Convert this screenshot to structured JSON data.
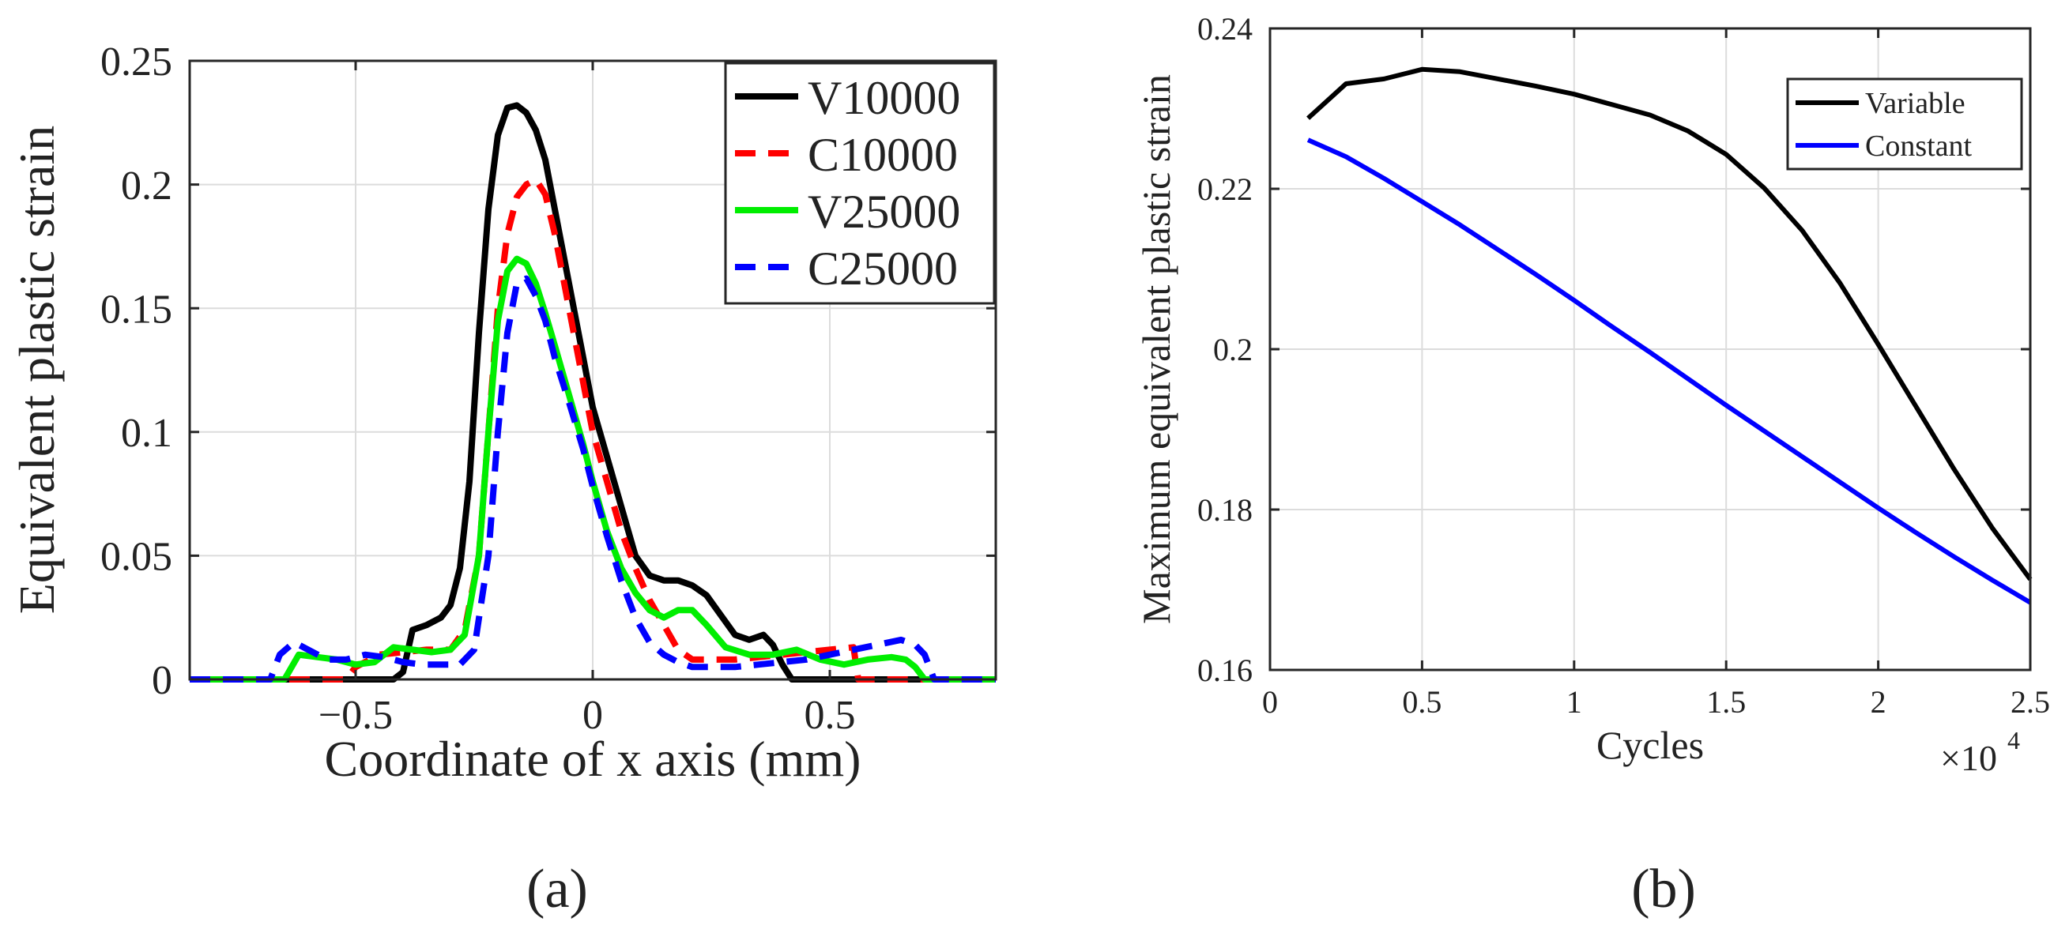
{
  "figure": {
    "panel_a_label": "(a)",
    "panel_b_label": "(b)"
  },
  "chart_data": [
    {
      "type": "line",
      "panel": "a",
      "xlabel": "Coordinate of x axis (mm)",
      "ylabel": "Equivalent plastic strain",
      "xlim": [
        -0.85,
        0.85
      ],
      "ylim": [
        0,
        0.25
      ],
      "xticks": [
        -0.5,
        0,
        0.5
      ],
      "xtick_labels": [
        "−0.5",
        "0",
        "0.5"
      ],
      "yticks": [
        0,
        0.05,
        0.1,
        0.15,
        0.2,
        0.25
      ],
      "ytick_labels": [
        "0",
        "0.05",
        "0.1",
        "0.15",
        "0.2",
        "0.25"
      ],
      "grid": true,
      "legend_position": "top-right",
      "series": [
        {
          "name": "V10000",
          "color": "#000000",
          "dash": "solid",
          "x": [
            -0.85,
            -0.42,
            -0.4,
            -0.38,
            -0.35,
            -0.32,
            -0.3,
            -0.28,
            -0.26,
            -0.24,
            -0.22,
            -0.2,
            -0.18,
            -0.16,
            -0.14,
            -0.12,
            -0.1,
            -0.08,
            -0.05,
            -0.02,
            0.0,
            0.03,
            0.06,
            0.09,
            0.12,
            0.15,
            0.18,
            0.21,
            0.24,
            0.27,
            0.3,
            0.33,
            0.36,
            0.38,
            0.4,
            0.42,
            0.44,
            0.85
          ],
          "y": [
            0,
            0,
            0.003,
            0.02,
            0.022,
            0.025,
            0.03,
            0.045,
            0.08,
            0.14,
            0.19,
            0.22,
            0.231,
            0.232,
            0.229,
            0.222,
            0.21,
            0.19,
            0.16,
            0.13,
            0.11,
            0.09,
            0.07,
            0.05,
            0.042,
            0.04,
            0.04,
            0.038,
            0.034,
            0.026,
            0.018,
            0.016,
            0.018,
            0.014,
            0.006,
            0,
            0,
            0
          ]
        },
        {
          "name": "C10000",
          "color": "#ff0000",
          "dash": "dashed",
          "x": [
            -0.85,
            -0.52,
            -0.5,
            -0.45,
            -0.4,
            -0.35,
            -0.3,
            -0.27,
            -0.24,
            -0.22,
            -0.2,
            -0.18,
            -0.16,
            -0.14,
            -0.12,
            -0.1,
            -0.08,
            -0.05,
            -0.02,
            0.0,
            0.03,
            0.06,
            0.09,
            0.12,
            0.15,
            0.18,
            0.21,
            0.25,
            0.3,
            0.35,
            0.4,
            0.45,
            0.5,
            0.55,
            0.56,
            0.85
          ],
          "y": [
            0,
            0,
            0.005,
            0.01,
            0.011,
            0.012,
            0.012,
            0.02,
            0.05,
            0.1,
            0.15,
            0.18,
            0.195,
            0.2,
            0.202,
            0.196,
            0.18,
            0.15,
            0.12,
            0.1,
            0.08,
            0.06,
            0.045,
            0.032,
            0.022,
            0.012,
            0.008,
            0.008,
            0.008,
            0.009,
            0.01,
            0.011,
            0.012,
            0.013,
            0,
            0
          ]
        },
        {
          "name": "V25000",
          "color": "#00ee00",
          "dash": "solid",
          "x": [
            -0.85,
            -0.65,
            -0.62,
            -0.58,
            -0.54,
            -0.5,
            -0.46,
            -0.42,
            -0.38,
            -0.34,
            -0.3,
            -0.27,
            -0.24,
            -0.22,
            -0.2,
            -0.18,
            -0.16,
            -0.14,
            -0.12,
            -0.1,
            -0.08,
            -0.05,
            -0.02,
            0.0,
            0.03,
            0.06,
            0.09,
            0.12,
            0.15,
            0.18,
            0.21,
            0.24,
            0.28,
            0.33,
            0.38,
            0.43,
            0.48,
            0.53,
            0.58,
            0.63,
            0.66,
            0.68,
            0.7,
            0.85
          ],
          "y": [
            0,
            0,
            0.01,
            0.009,
            0.008,
            0.006,
            0.007,
            0.013,
            0.012,
            0.011,
            0.012,
            0.018,
            0.05,
            0.1,
            0.145,
            0.165,
            0.17,
            0.168,
            0.16,
            0.148,
            0.135,
            0.115,
            0.095,
            0.08,
            0.06,
            0.045,
            0.035,
            0.028,
            0.025,
            0.028,
            0.028,
            0.022,
            0.013,
            0.01,
            0.01,
            0.012,
            0.008,
            0.006,
            0.008,
            0.009,
            0.008,
            0.005,
            0,
            0
          ]
        },
        {
          "name": "C25000",
          "color": "#0000ff",
          "dash": "dashed",
          "x": [
            -0.85,
            -0.68,
            -0.66,
            -0.63,
            -0.6,
            -0.56,
            -0.52,
            -0.48,
            -0.44,
            -0.4,
            -0.36,
            -0.32,
            -0.28,
            -0.25,
            -0.22,
            -0.2,
            -0.18,
            -0.16,
            -0.14,
            -0.12,
            -0.1,
            -0.08,
            -0.05,
            -0.02,
            0.0,
            0.03,
            0.06,
            0.09,
            0.12,
            0.15,
            0.18,
            0.21,
            0.25,
            0.3,
            0.35,
            0.4,
            0.45,
            0.5,
            0.55,
            0.6,
            0.65,
            0.68,
            0.7,
            0.72,
            0.85
          ],
          "y": [
            0,
            0,
            0.01,
            0.015,
            0.012,
            0.008,
            0.008,
            0.01,
            0.009,
            0.007,
            0.006,
            0.006,
            0.006,
            0.012,
            0.05,
            0.1,
            0.14,
            0.16,
            0.162,
            0.155,
            0.145,
            0.13,
            0.112,
            0.093,
            0.078,
            0.058,
            0.04,
            0.025,
            0.015,
            0.01,
            0.007,
            0.005,
            0.005,
            0.005,
            0.006,
            0.007,
            0.008,
            0.01,
            0.012,
            0.014,
            0.016,
            0.014,
            0.01,
            0,
            0
          ]
        }
      ]
    },
    {
      "type": "line",
      "panel": "b",
      "xlabel": "Cycles",
      "ylabel": "Maximum equivalent plastic strain",
      "x_multiplier_label": "×10",
      "x_multiplier_exponent": "4",
      "xlim": [
        0,
        25000
      ],
      "ylim": [
        0.16,
        0.24
      ],
      "xticks": [
        0,
        5000,
        10000,
        15000,
        20000,
        25000
      ],
      "xtick_labels": [
        "0",
        "0.5",
        "1",
        "1.5",
        "2",
        "2.5"
      ],
      "yticks": [
        0.16,
        0.18,
        0.2,
        0.22,
        0.24
      ],
      "ytick_labels": [
        "0.16",
        "0.18",
        "0.2",
        "0.22",
        "0.24"
      ],
      "grid": true,
      "legend_position": "top-right",
      "series": [
        {
          "name": "Variable",
          "color": "#000000",
          "dash": "solid",
          "x": [
            1250,
            2500,
            3750,
            5000,
            6250,
            7500,
            8750,
            10000,
            11250,
            12500,
            13750,
            15000,
            16250,
            17500,
            18750,
            20000,
            21250,
            22500,
            23750,
            25000
          ],
          "y": [
            0.2288,
            0.2331,
            0.2337,
            0.2349,
            0.2346,
            0.2337,
            0.2328,
            0.2318,
            0.2305,
            0.2292,
            0.2272,
            0.2243,
            0.2201,
            0.2148,
            0.2082,
            0.2006,
            0.1928,
            0.185,
            0.1777,
            0.1713
          ]
        },
        {
          "name": "Constant",
          "color": "#0000ff",
          "dash": "solid",
          "x": [
            1250,
            2500,
            3750,
            5000,
            6250,
            7500,
            8750,
            10000,
            11250,
            12500,
            13750,
            15000,
            16250,
            17500,
            18750,
            20000,
            21250,
            22500,
            23750,
            25000
          ],
          "y": [
            0.2261,
            0.224,
            0.2213,
            0.2184,
            0.2155,
            0.2124,
            0.2093,
            0.2061,
            0.2028,
            0.1996,
            0.1963,
            0.193,
            0.1898,
            0.1866,
            0.1834,
            0.1802,
            0.1771,
            0.1741,
            0.1712,
            0.1684
          ]
        }
      ]
    }
  ]
}
